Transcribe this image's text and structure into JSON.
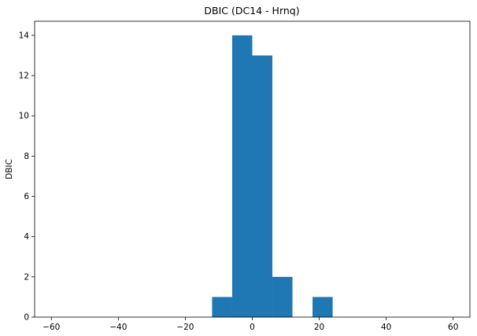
{
  "chart_data": {
    "type": "bar",
    "title": "DBIC (DC14 - Hrnq)",
    "xlabel": "",
    "ylabel": "DBIC",
    "xlim": [
      -65,
      65
    ],
    "ylim": [
      0,
      14.7
    ],
    "xticks": [
      -60,
      -40,
      -20,
      0,
      20,
      40,
      60
    ],
    "yticks": [
      0,
      2,
      4,
      6,
      8,
      10,
      12,
      14
    ],
    "grid": false,
    "bins": [
      {
        "x0": -12,
        "x1": -6,
        "count": 1
      },
      {
        "x0": -6,
        "x1": 0,
        "count": 14
      },
      {
        "x0": 0,
        "x1": 6,
        "count": 13
      },
      {
        "x0": 6,
        "x1": 12,
        "count": 2
      },
      {
        "x0": 12,
        "x1": 18,
        "count": 0
      },
      {
        "x0": 18,
        "x1": 24,
        "count": 1
      }
    ],
    "bar_color": "#1f77b4"
  }
}
